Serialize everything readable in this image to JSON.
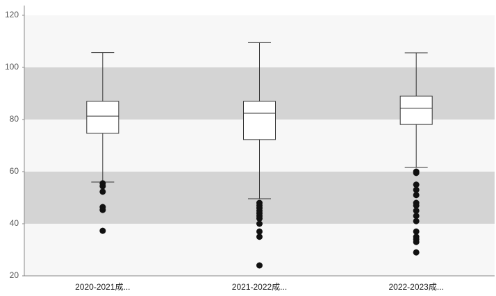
{
  "chart_data": {
    "type": "box",
    "categories": [
      "2020-2021成...",
      "2021-2022成...",
      "2022-2023成..."
    ],
    "boxes": [
      {
        "low": 56,
        "q1": 74.7,
        "median": 81.3,
        "q3": 87,
        "high": 105.7,
        "outliers": [
          55.5,
          54.4,
          52.3,
          46.4,
          45.3,
          37.3
        ]
      },
      {
        "low": 49.6,
        "q1": 72.3,
        "median": 82.4,
        "q3": 87,
        "high": 109.5,
        "outliers": [
          48,
          47,
          46,
          45,
          44,
          43,
          42,
          40,
          37,
          35,
          24
        ]
      },
      {
        "low": 61.6,
        "q1": 78.1,
        "median": 84.3,
        "q3": 89,
        "high": 105.6,
        "outliers": [
          60,
          59.5,
          55,
          53,
          51,
          48,
          47,
          45,
          43,
          41,
          37,
          35,
          34,
          33,
          29
        ]
      }
    ],
    "ylim": [
      20,
      120
    ],
    "yticks": [
      20,
      40,
      60,
      80,
      100,
      120
    ],
    "band_colors": [
      "#f7f7f7",
      "#d4d4d4"
    ],
    "box_color": "#ffffff",
    "line_color": "#333333",
    "outlier_color": "#111111"
  }
}
